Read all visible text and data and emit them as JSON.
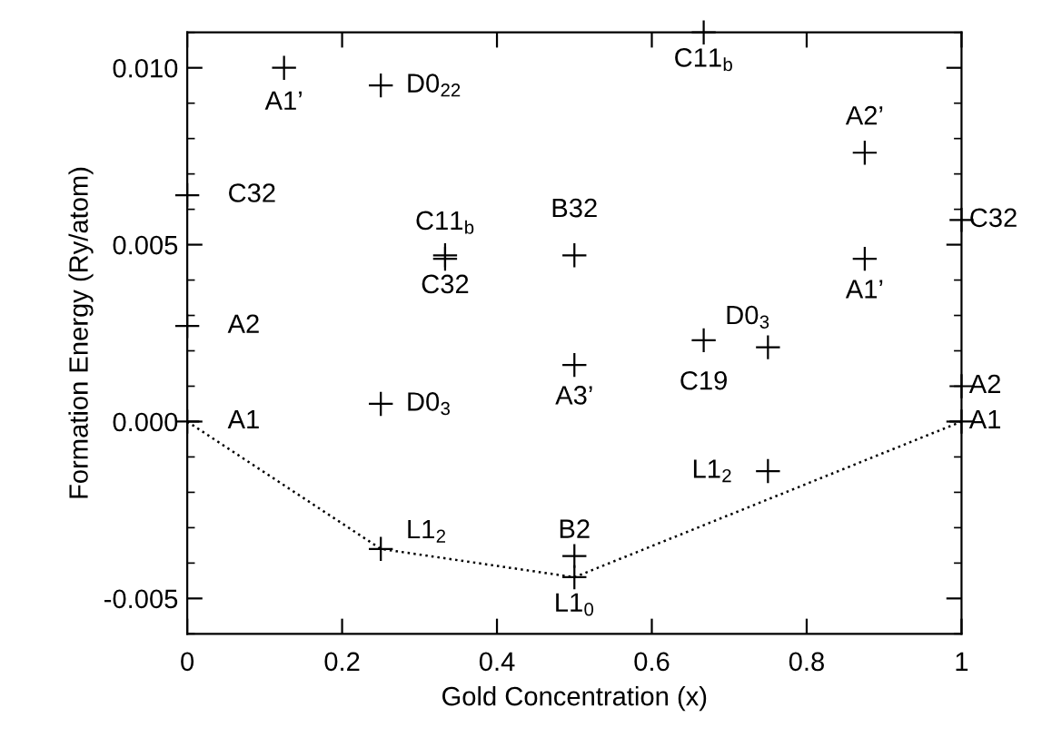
{
  "chart_data": {
    "type": "scatter",
    "xlabel": "Gold Concentration (x)",
    "ylabel": "Formation Energy (Ry/atom)",
    "xlim": [
      0,
      1
    ],
    "ylim": [
      -0.006,
      0.011
    ],
    "xticks": [
      0,
      0.2,
      0.4,
      0.6,
      0.8,
      1
    ],
    "yticks": [
      {
        "value": -0.005,
        "label": "-0.005"
      },
      {
        "value": 0,
        "label": "0.000"
      },
      {
        "value": 0.005,
        "label": "0.005"
      },
      {
        "value": 0.01,
        "label": "0.010"
      }
    ],
    "grid": false,
    "legend": false,
    "series": [
      {
        "marker": "cross",
        "color": "#000000",
        "x": [
          0.125,
          0.25,
          0,
          0.333,
          0.333,
          0,
          0.25,
          0,
          0.25,
          0.667,
          0.875,
          1,
          0.875,
          0.5,
          0.667,
          0.75,
          0.5,
          1,
          1,
          0.75,
          0.5,
          0.5
        ],
        "values": [
          0.01,
          0.0095,
          0.0064,
          0.0047,
          0.0046,
          0.0027,
          0.0005,
          0,
          -0.0036,
          0.011,
          0.0076,
          0.0057,
          0.0046,
          0.0047,
          0.0023,
          0.0021,
          0.0016,
          0.001,
          0,
          -0.0014,
          -0.0038,
          -0.0044
        ]
      },
      {
        "type": "line",
        "line_style": "dotted",
        "marker": "none",
        "color": "#000000",
        "x": [
          0,
          0.25,
          0.5,
          1
        ],
        "values": [
          0,
          -0.0036,
          -0.0044,
          0
        ]
      }
    ],
    "annotations": [
      {
        "text": "A1’",
        "x": 0.125,
        "y": 0.01
      },
      {
        "text": "D0$_{22}$",
        "x": 0.25,
        "y": 0.0095
      },
      {
        "text": "C32",
        "x": 0,
        "y": 0.0064
      },
      {
        "text": "C11$_{b}$",
        "x": 0.333,
        "y": 0.0047
      },
      {
        "text": "C32",
        "x": 0.333,
        "y": 0.0046
      },
      {
        "text": "A2",
        "x": 0,
        "y": 0.0027
      },
      {
        "text": "D0$_{3}$",
        "x": 0.25,
        "y": 0.0005
      },
      {
        "text": "A1",
        "x": 0,
        "y": 0
      },
      {
        "text": "L1$_{2}$",
        "x": 0.25,
        "y": -0.0036
      },
      {
        "text": "C11$_{b}$",
        "x": 0.667,
        "y": 0.011
      },
      {
        "text": "A2’",
        "x": 0.875,
        "y": 0.0076
      },
      {
        "text": "C32",
        "x": 1,
        "y": 0.0057
      },
      {
        "text": "A1’",
        "x": 0.875,
        "y": 0.0046
      },
      {
        "text": "B32",
        "x": 0.5,
        "y": 0.0047
      },
      {
        "text": "C19",
        "x": 0.667,
        "y": 0.0023
      },
      {
        "text": "D0$_{3}$",
        "x": 0.75,
        "y": 0.0021
      },
      {
        "text": "A3’",
        "x": 0.5,
        "y": 0.0016
      },
      {
        "text": "A2",
        "x": 1,
        "y": 0.001
      },
      {
        "text": "A1",
        "x": 1,
        "y": 0
      },
      {
        "text": "L1$_{2}$",
        "x": 0.75,
        "y": -0.0014
      },
      {
        "text": "B2",
        "x": 0.5,
        "y": -0.0038
      },
      {
        "text": "L1$_{0}$",
        "x": 0.5,
        "y": -0.0044
      }
    ]
  }
}
